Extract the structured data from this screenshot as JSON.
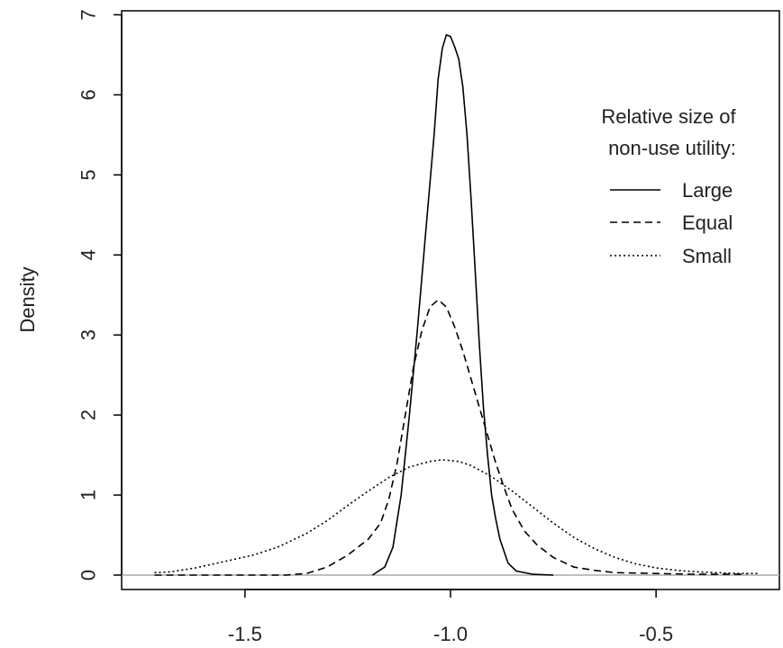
{
  "chart_data": {
    "type": "line",
    "title": "",
    "xlabel": "",
    "ylabel": "Density",
    "xlim": [
      -1.8,
      -0.2
    ],
    "ylim": [
      -0.18,
      7.05
    ],
    "x_ticks": [
      -1.5,
      -1.0,
      -0.5
    ],
    "x_tick_labels": [
      "-1.5",
      "-1.0",
      "-0.5"
    ],
    "y_ticks": [
      0,
      1,
      2,
      3,
      4,
      5,
      6,
      7
    ],
    "y_tick_labels": [
      "0",
      "1",
      "2",
      "3",
      "4",
      "5",
      "6",
      "7"
    ],
    "baseline": 0,
    "grid": false,
    "legend": {
      "placement": "top-right",
      "title_lines": [
        "Relative size of",
        "non-use utility:"
      ],
      "entries": [
        "Large",
        "Equal",
        "Small"
      ]
    },
    "series": [
      {
        "name": "Large",
        "style": "solid",
        "points": [
          [
            -1.19,
            0.0
          ],
          [
            -1.16,
            0.1
          ],
          [
            -1.14,
            0.35
          ],
          [
            -1.12,
            1.0
          ],
          [
            -1.1,
            2.0
          ],
          [
            -1.08,
            3.1
          ],
          [
            -1.06,
            4.3
          ],
          [
            -1.04,
            5.5
          ],
          [
            -1.03,
            6.2
          ],
          [
            -1.02,
            6.58
          ],
          [
            -1.01,
            6.75
          ],
          [
            -1.0,
            6.73
          ],
          [
            -0.99,
            6.6
          ],
          [
            -0.98,
            6.45
          ],
          [
            -0.97,
            6.1
          ],
          [
            -0.96,
            5.5
          ],
          [
            -0.95,
            4.7
          ],
          [
            -0.94,
            3.8
          ],
          [
            -0.93,
            2.9
          ],
          [
            -0.92,
            2.1
          ],
          [
            -0.91,
            1.5
          ],
          [
            -0.9,
            1.0
          ],
          [
            -0.89,
            0.7
          ],
          [
            -0.88,
            0.45
          ],
          [
            -0.87,
            0.3
          ],
          [
            -0.86,
            0.15
          ],
          [
            -0.84,
            0.05
          ],
          [
            -0.8,
            0.01
          ],
          [
            -0.75,
            0.0
          ]
        ]
      },
      {
        "name": "Equal",
        "style": "dashed",
        "points": [
          [
            -1.72,
            0.0
          ],
          [
            -1.55,
            0.0
          ],
          [
            -1.4,
            0.0
          ],
          [
            -1.35,
            0.02
          ],
          [
            -1.3,
            0.1
          ],
          [
            -1.25,
            0.25
          ],
          [
            -1.2,
            0.45
          ],
          [
            -1.17,
            0.65
          ],
          [
            -1.15,
            0.95
          ],
          [
            -1.13,
            1.4
          ],
          [
            -1.11,
            2.0
          ],
          [
            -1.09,
            2.6
          ],
          [
            -1.07,
            3.05
          ],
          [
            -1.05,
            3.35
          ],
          [
            -1.03,
            3.44
          ],
          [
            -1.01,
            3.35
          ],
          [
            -0.99,
            3.1
          ],
          [
            -0.97,
            2.8
          ],
          [
            -0.95,
            2.45
          ],
          [
            -0.93,
            2.1
          ],
          [
            -0.91,
            1.75
          ],
          [
            -0.89,
            1.4
          ],
          [
            -0.87,
            1.1
          ],
          [
            -0.85,
            0.82
          ],
          [
            -0.82,
            0.55
          ],
          [
            -0.79,
            0.38
          ],
          [
            -0.75,
            0.22
          ],
          [
            -0.7,
            0.1
          ],
          [
            -0.65,
            0.06
          ],
          [
            -0.6,
            0.03
          ],
          [
            -0.5,
            0.02
          ],
          [
            -0.4,
            0.01
          ],
          [
            -0.28,
            0.01
          ]
        ]
      },
      {
        "name": "Small",
        "style": "dotted",
        "points": [
          [
            -1.72,
            0.03
          ],
          [
            -1.68,
            0.04
          ],
          [
            -1.62,
            0.09
          ],
          [
            -1.55,
            0.17
          ],
          [
            -1.48,
            0.25
          ],
          [
            -1.42,
            0.35
          ],
          [
            -1.35,
            0.52
          ],
          [
            -1.3,
            0.68
          ],
          [
            -1.25,
            0.87
          ],
          [
            -1.2,
            1.05
          ],
          [
            -1.15,
            1.22
          ],
          [
            -1.1,
            1.35
          ],
          [
            -1.05,
            1.42
          ],
          [
            -1.02,
            1.44
          ],
          [
            -0.98,
            1.42
          ],
          [
            -0.95,
            1.37
          ],
          [
            -0.9,
            1.23
          ],
          [
            -0.85,
            1.05
          ],
          [
            -0.8,
            0.85
          ],
          [
            -0.75,
            0.65
          ],
          [
            -0.7,
            0.47
          ],
          [
            -0.65,
            0.33
          ],
          [
            -0.6,
            0.22
          ],
          [
            -0.55,
            0.14
          ],
          [
            -0.5,
            0.09
          ],
          [
            -0.45,
            0.06
          ],
          [
            -0.4,
            0.04
          ],
          [
            -0.35,
            0.03
          ],
          [
            -0.3,
            0.02
          ],
          [
            -0.25,
            0.02
          ]
        ]
      }
    ]
  }
}
